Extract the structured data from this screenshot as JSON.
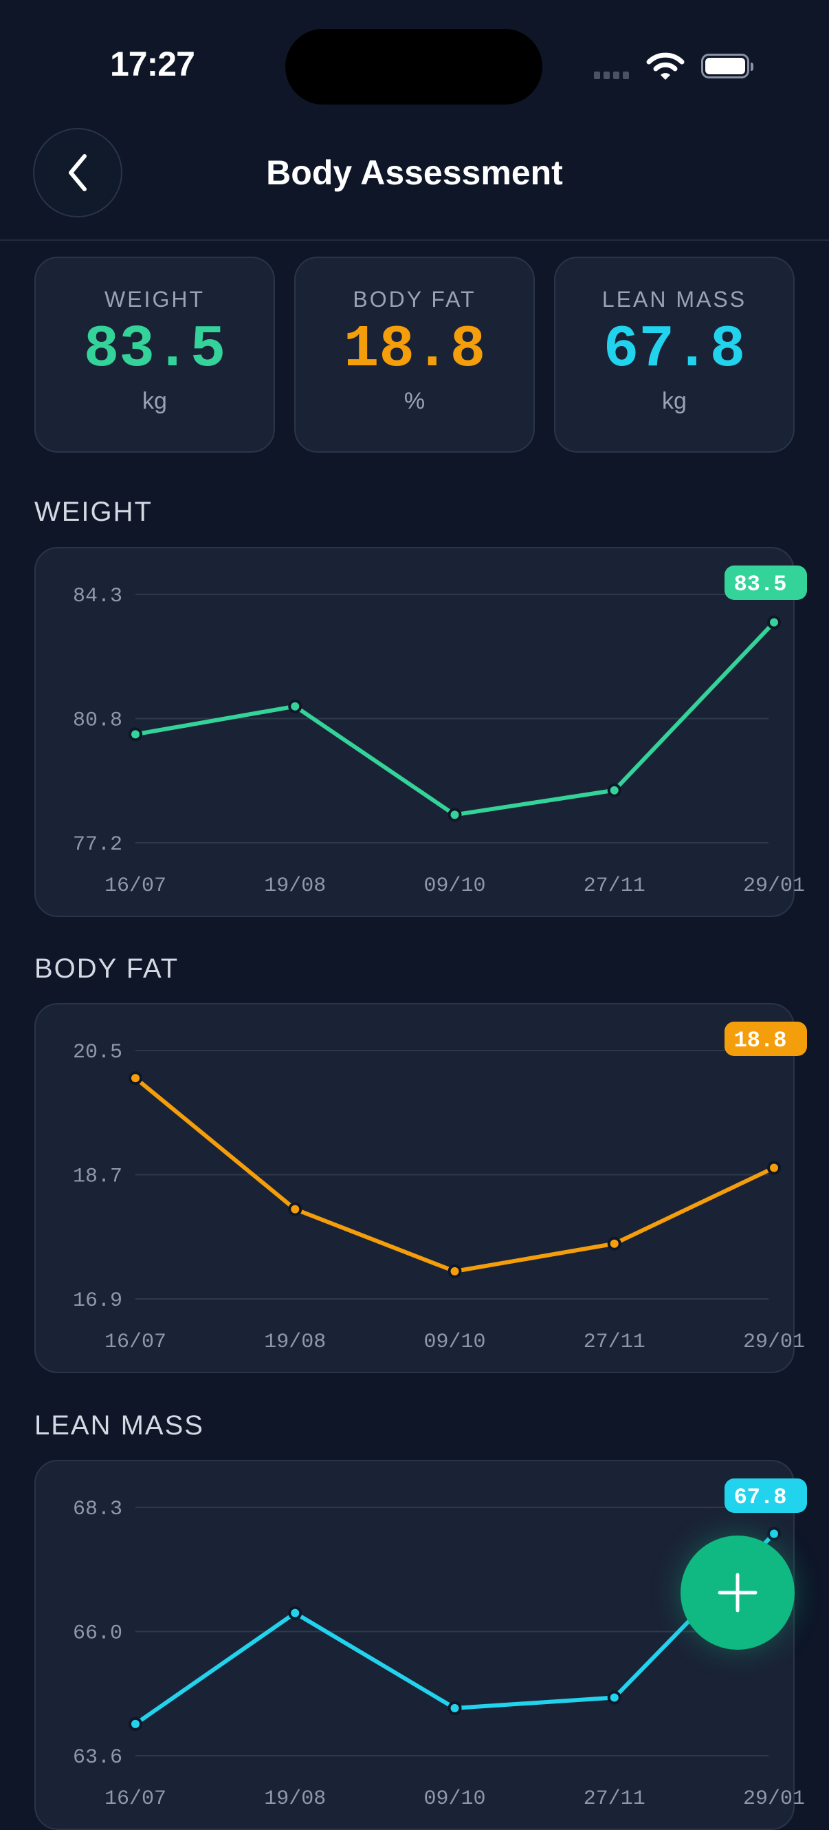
{
  "status_bar": {
    "time": "17:27",
    "icons": [
      "cellular-signal-icon",
      "wifi-icon",
      "battery-icon"
    ]
  },
  "header": {
    "title": "Body Assessment",
    "back_icon": "chevron-left-icon"
  },
  "stats": [
    {
      "label": "WEIGHT",
      "value": "83.5",
      "unit": "kg",
      "color": "#34d399"
    },
    {
      "label": "BODY FAT",
      "value": "18.8",
      "unit": "%",
      "color": "#f59e0b"
    },
    {
      "label": "LEAN MASS",
      "value": "67.8",
      "unit": "kg",
      "color": "#22d3ee"
    }
  ],
  "sections": [
    "WEIGHT",
    "BODY FAT",
    "LEAN MASS"
  ],
  "fab": {
    "icon": "plus-icon",
    "color": "#10b981"
  },
  "chart_data": [
    {
      "type": "line",
      "categories": [
        "16/07",
        "19/08",
        "09/10",
        "27/11",
        "29/01"
      ],
      "values": [
        80.3,
        81.1,
        78.0,
        78.7,
        83.5
      ],
      "yticks": [
        "84.3",
        "80.8",
        "77.2"
      ],
      "ylim": [
        77.2,
        84.3
      ],
      "grid": true,
      "last_label": "83.5",
      "color": "#34d399"
    },
    {
      "type": "line",
      "categories": [
        "16/07",
        "19/08",
        "09/10",
        "27/11",
        "29/01"
      ],
      "values": [
        20.1,
        18.2,
        17.3,
        17.7,
        18.8
      ],
      "yticks": [
        "20.5",
        "18.7",
        "16.9"
      ],
      "ylim": [
        16.9,
        20.5
      ],
      "grid": true,
      "last_label": "18.8",
      "color": "#f59e0b"
    },
    {
      "type": "line",
      "categories": [
        "16/07",
        "19/08",
        "09/10",
        "27/11",
        "29/01"
      ],
      "values": [
        64.2,
        66.3,
        64.5,
        64.7,
        67.8
      ],
      "yticks": [
        "68.3",
        "66.0",
        "63.6"
      ],
      "ylim": [
        63.6,
        68.3
      ],
      "grid": true,
      "last_label": "67.8",
      "color": "#22d3ee"
    }
  ]
}
